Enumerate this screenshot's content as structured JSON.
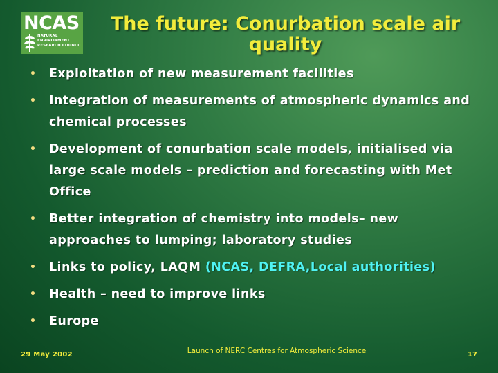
{
  "logo": {
    "word": "NCAS",
    "org_lines": [
      "NATURAL",
      "ENVIRONMENT",
      "RESEARCH COUNCIL"
    ]
  },
  "title": "The future: Conurbation scale air quality",
  "bullets": [
    {
      "text": "Exploitation of new measurement facilities"
    },
    {
      "text": "Integration of measurements of atmospheric dynamics and chemical processes"
    },
    {
      "text": "Development of conurbation scale models, initialised via large scale models – prediction and forecasting with Met Office"
    },
    {
      "text": "Better integration of chemistry into models– new approaches to lumping; laboratory studies"
    },
    {
      "text": "Links to policy, LAQM ",
      "highlight": "(NCAS, DEFRA,Local authorities)"
    },
    {
      "text": "Health – need to improve links"
    },
    {
      "text": "Europe"
    }
  ],
  "footer": {
    "date": "29 May 2002",
    "center": "Launch of NERC Centres for Atmospheric Science",
    "page": "17"
  },
  "colors": {
    "title": "#f2ec3c",
    "highlight": "#4ff2f2",
    "logo_bg": "#58a444"
  }
}
